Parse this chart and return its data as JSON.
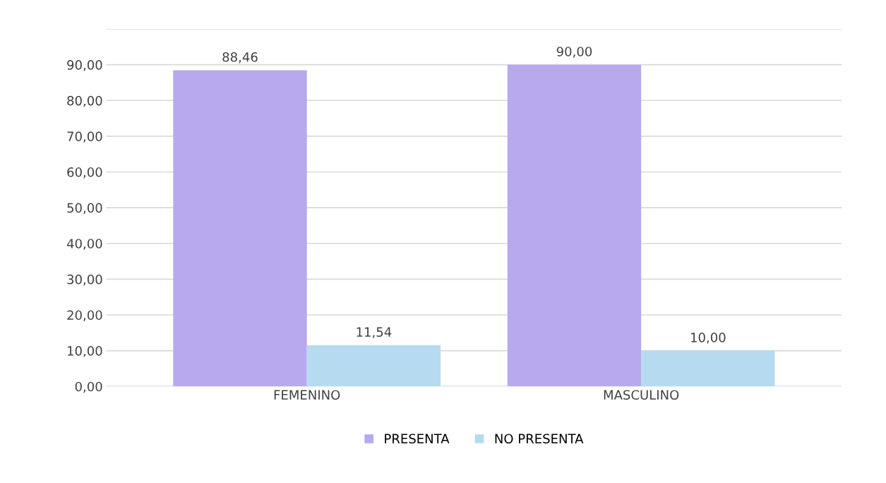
{
  "chart_data": {
    "type": "bar",
    "categories": [
      "FEMENINO",
      "MASCULINO"
    ],
    "series": [
      {
        "name": "PRESENTA",
        "color": "#b8a9ee",
        "values": [
          88.46,
          90.0
        ],
        "value_labels": [
          "88,46",
          "90,00"
        ]
      },
      {
        "name": "NO PRESENTA",
        "color": "#b6dbf1",
        "values": [
          11.54,
          10.0
        ],
        "value_labels": [
          "11,54",
          "10,00"
        ]
      }
    ],
    "ylim": [
      0,
      100
    ],
    "yticks": [
      {
        "value": 0,
        "label": "0,00"
      },
      {
        "value": 10,
        "label": "10,00"
      },
      {
        "value": 20,
        "label": "20,00"
      },
      {
        "value": 30,
        "label": "30,00"
      },
      {
        "value": 40,
        "label": "40,00"
      },
      {
        "value": 50,
        "label": "50,00"
      },
      {
        "value": 60,
        "label": "60,00"
      },
      {
        "value": 70,
        "label": "70,00"
      },
      {
        "value": 80,
        "label": "80,00"
      },
      {
        "value": 90,
        "label": "90,00"
      },
      {
        "value": 100,
        "label": null
      }
    ],
    "grid": "y",
    "legend": "bottom"
  }
}
